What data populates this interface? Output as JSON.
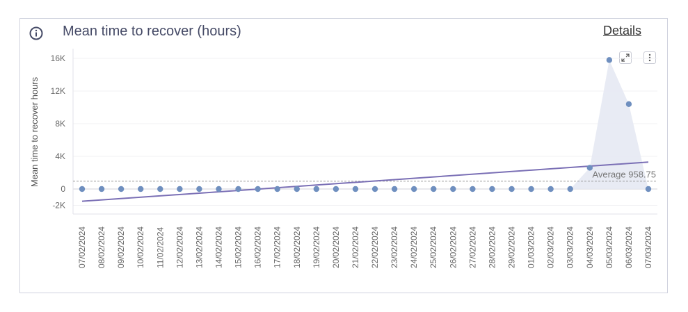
{
  "header": {
    "title": "Mean time to recover (hours)",
    "details_label": "Details",
    "info_icon": "info-icon"
  },
  "toolbar": {
    "expand_icon": "expand-icon",
    "more_icon": "more-vertical-icon"
  },
  "colors": {
    "trend_line": "#7a6fb5",
    "points": "#6f8fbf",
    "area_fill": "#e6e9f3",
    "average_line": "#999999",
    "title": "#454a66"
  },
  "chart_data": {
    "type": "scatter",
    "title": "Mean time to recover (hours)",
    "xlabel": "",
    "ylabel": "Mean time to recover hours",
    "ylim": [
      -2000,
      16800
    ],
    "yticks": [
      -2000,
      0,
      4000,
      8000,
      12000,
      16000
    ],
    "ytick_labels": [
      "-2K",
      "0",
      "4K",
      "8K",
      "12K",
      "16K"
    ],
    "categories": [
      "07/02/2024",
      "08/02/2024",
      "09/02/2024",
      "10/02/2024",
      "11/02/2024",
      "12/02/2024",
      "13/02/2024",
      "14/02/2024",
      "15/02/2024",
      "16/02/2024",
      "17/02/2024",
      "18/02/2024",
      "19/02/2024",
      "20/02/2024",
      "21/02/2024",
      "22/02/2024",
      "23/02/2024",
      "24/02/2024",
      "25/02/2024",
      "26/02/2024",
      "27/02/2024",
      "28/02/2024",
      "29/02/2024",
      "01/03/2024",
      "02/03/2024",
      "03/03/2024",
      "04/03/2024",
      "05/03/2024",
      "06/03/2024",
      "07/03/2024"
    ],
    "values": [
      0,
      0,
      0,
      0,
      0,
      0,
      0,
      0,
      0,
      0,
      0,
      0,
      0,
      0,
      0,
      0,
      0,
      0,
      0,
      0,
      0,
      0,
      0,
      0,
      0,
      0,
      2600,
      15800,
      10400,
      0
    ],
    "trend_line": {
      "start": -1500,
      "end": 3300
    },
    "average": {
      "value": 958.75,
      "label": "Average 958.75"
    },
    "grid": true
  }
}
